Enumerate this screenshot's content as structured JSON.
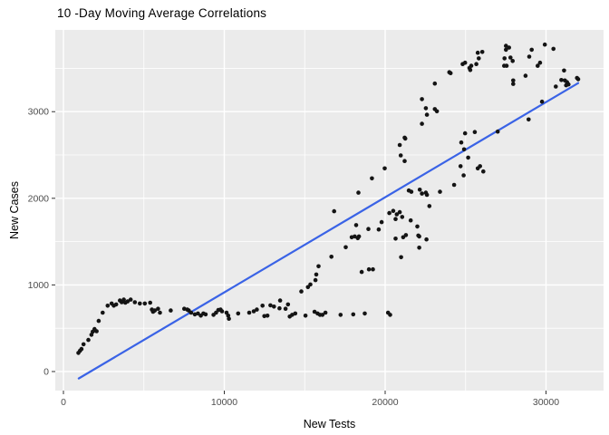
{
  "title": "10 -Day Moving Average Correlations",
  "colors": {
    "panel_background": "#EBEBEB",
    "gridline": "#FFFFFF",
    "point": "#141414",
    "trend_line": "#3A63E6",
    "tick_label": "#4D4D4D",
    "tick_mark": "#333333",
    "text": "#000000"
  },
  "chart_data": {
    "type": "scatter",
    "title": "10 -Day Moving Average Correlations",
    "xlabel": "New Tests",
    "ylabel": "New Cases",
    "grid": true,
    "legend_position": "none",
    "xlim": [
      -507,
      33578
    ],
    "ylim": [
      -220,
      3944
    ],
    "x_ticks": [
      0,
      10000,
      20000,
      30000
    ],
    "x_minor_ticks": [
      5000,
      15000,
      25000
    ],
    "y_ticks": [
      0,
      1000,
      2000,
      3000
    ],
    "y_minor_ticks": [
      500,
      1500,
      2500,
      3500
    ],
    "trend_line": {
      "points": [
        [
          950,
          -80
        ],
        [
          32000,
          3330
        ]
      ]
    },
    "points": [
      [
        930,
        215
      ],
      [
        1030,
        240
      ],
      [
        1120,
        260
      ],
      [
        1250,
        315
      ],
      [
        1550,
        365
      ],
      [
        1740,
        425
      ],
      [
        1820,
        460
      ],
      [
        1930,
        490
      ],
      [
        2060,
        465
      ],
      [
        2190,
        585
      ],
      [
        2440,
        680
      ],
      [
        2750,
        760
      ],
      [
        3000,
        785
      ],
      [
        3130,
        760
      ],
      [
        3280,
        775
      ],
      [
        3510,
        820
      ],
      [
        3620,
        800
      ],
      [
        3750,
        830
      ],
      [
        3850,
        795
      ],
      [
        3990,
        810
      ],
      [
        4180,
        830
      ],
      [
        4440,
        800
      ],
      [
        4750,
        785
      ],
      [
        5060,
        785
      ],
      [
        5390,
        795
      ],
      [
        5500,
        715
      ],
      [
        5570,
        690
      ],
      [
        5680,
        705
      ],
      [
        5880,
        725
      ],
      [
        6000,
        680
      ],
      [
        6670,
        705
      ],
      [
        7510,
        725
      ],
      [
        7700,
        715
      ],
      [
        7790,
        705
      ],
      [
        7940,
        680
      ],
      [
        8170,
        660
      ],
      [
        8360,
        670
      ],
      [
        8540,
        645
      ],
      [
        8700,
        670
      ],
      [
        8840,
        660
      ],
      [
        9330,
        655
      ],
      [
        9490,
        680
      ],
      [
        9630,
        710
      ],
      [
        9770,
        715
      ],
      [
        9860,
        695
      ],
      [
        10140,
        680
      ],
      [
        10240,
        645
      ],
      [
        10290,
        610
      ],
      [
        10860,
        670
      ],
      [
        11550,
        680
      ],
      [
        11830,
        695
      ],
      [
        12020,
        715
      ],
      [
        12380,
        760
      ],
      [
        12490,
        640
      ],
      [
        12680,
        645
      ],
      [
        12870,
        765
      ],
      [
        13090,
        750
      ],
      [
        13430,
        730
      ],
      [
        13470,
        820
      ],
      [
        13810,
        725
      ],
      [
        13960,
        775
      ],
      [
        14070,
        635
      ],
      [
        14220,
        655
      ],
      [
        14410,
        670
      ],
      [
        15050,
        645
      ],
      [
        15610,
        690
      ],
      [
        15800,
        670
      ],
      [
        15950,
        655
      ],
      [
        16100,
        655
      ],
      [
        16290,
        680
      ],
      [
        17230,
        655
      ],
      [
        18020,
        660
      ],
      [
        18730,
        670
      ],
      [
        20180,
        680
      ],
      [
        20310,
        655
      ],
      [
        14790,
        925
      ],
      [
        15200,
        975
      ],
      [
        15350,
        1005
      ],
      [
        15670,
        1055
      ],
      [
        15720,
        1120
      ],
      [
        15860,
        1215
      ],
      [
        16660,
        1325
      ],
      [
        16830,
        1850
      ],
      [
        17550,
        1435
      ],
      [
        17920,
        1550
      ],
      [
        18110,
        1560
      ],
      [
        18300,
        1540
      ],
      [
        18370,
        1560
      ],
      [
        18540,
        1150
      ],
      [
        18990,
        1180
      ],
      [
        19240,
        1180
      ],
      [
        20650,
        1535
      ],
      [
        21120,
        1550
      ],
      [
        22120,
        1560
      ],
      [
        22120,
        1430
      ],
      [
        20990,
        1320
      ],
      [
        18200,
        1690
      ],
      [
        18960,
        1645
      ],
      [
        19600,
        1640
      ],
      [
        19780,
        1725
      ],
      [
        20260,
        1830
      ],
      [
        20500,
        1855
      ],
      [
        20720,
        1815
      ],
      [
        20910,
        1840
      ],
      [
        21060,
        1785
      ],
      [
        20650,
        1760
      ],
      [
        21590,
        1745
      ],
      [
        22000,
        1675
      ],
      [
        21290,
        1575
      ],
      [
        22060,
        1570
      ],
      [
        22570,
        1525
      ],
      [
        18340,
        2065
      ],
      [
        19180,
        2230
      ],
      [
        19970,
        2345
      ],
      [
        20910,
        2615
      ],
      [
        21210,
        2700
      ],
      [
        20970,
        2495
      ],
      [
        21210,
        2430
      ],
      [
        21470,
        2090
      ],
      [
        21630,
        2075
      ],
      [
        22150,
        2100
      ],
      [
        22290,
        2055
      ],
      [
        22530,
        2065
      ],
      [
        22600,
        2040
      ],
      [
        22750,
        1910
      ],
      [
        23090,
        3325
      ],
      [
        22290,
        3145
      ],
      [
        22530,
        3040
      ],
      [
        22600,
        2965
      ],
      [
        23220,
        3005
      ],
      [
        22290,
        2860
      ],
      [
        21250,
        2690
      ],
      [
        23990,
        3455
      ],
      [
        24070,
        3445
      ],
      [
        24820,
        3550
      ],
      [
        24970,
        3565
      ],
      [
        25240,
        3505
      ],
      [
        25350,
        3530
      ],
      [
        25670,
        3550
      ],
      [
        25290,
        3480
      ],
      [
        25760,
        3680
      ],
      [
        26040,
        3690
      ],
      [
        25820,
        3615
      ],
      [
        27510,
        3760
      ],
      [
        27510,
        3715
      ],
      [
        27700,
        3740
      ],
      [
        27790,
        3625
      ],
      [
        27420,
        3615
      ],
      [
        27400,
        3530
      ],
      [
        27550,
        3530
      ],
      [
        27930,
        3585
      ],
      [
        27960,
        3360
      ],
      [
        27960,
        3320
      ],
      [
        28960,
        3635
      ],
      [
        28730,
        3415
      ],
      [
        29480,
        3530
      ],
      [
        29630,
        3565
      ],
      [
        29930,
        3775
      ],
      [
        30460,
        3725
      ],
      [
        29110,
        3715
      ],
      [
        31120,
        3475
      ],
      [
        30610,
        3290
      ],
      [
        31170,
        3360
      ],
      [
        31310,
        3340
      ],
      [
        31400,
        3315
      ],
      [
        31250,
        3305
      ],
      [
        31930,
        3390
      ],
      [
        32000,
        3375
      ],
      [
        30950,
        3365
      ],
      [
        24970,
        2750
      ],
      [
        24730,
        2645
      ],
      [
        24910,
        2565
      ],
      [
        25570,
        2765
      ],
      [
        25160,
        2470
      ],
      [
        27000,
        2770
      ],
      [
        28920,
        2910
      ],
      [
        29750,
        3115
      ],
      [
        24290,
        2155
      ],
      [
        23410,
        2075
      ],
      [
        24880,
        2265
      ],
      [
        24690,
        2370
      ],
      [
        25760,
        2345
      ],
      [
        25900,
        2370
      ],
      [
        26100,
        2310
      ],
      [
        23090,
        3030
      ]
    ]
  }
}
